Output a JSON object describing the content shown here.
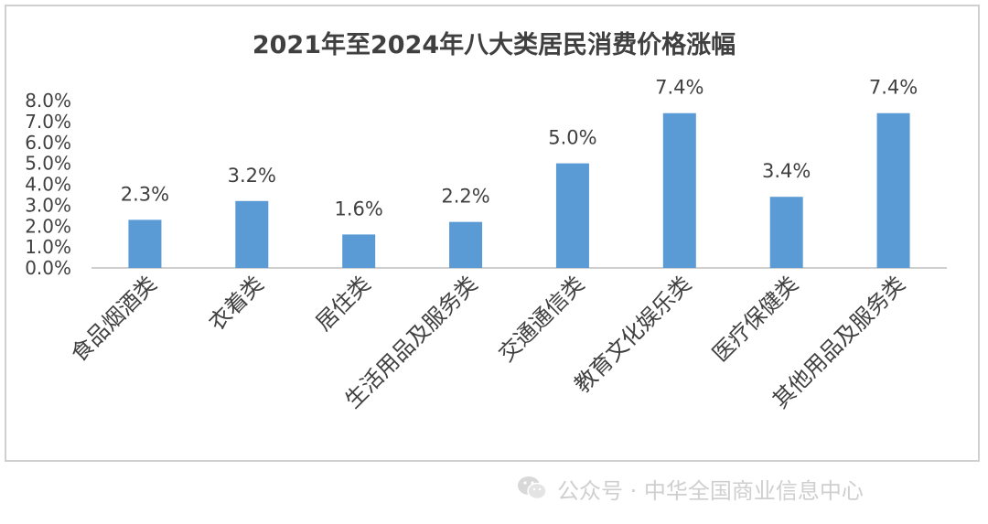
{
  "chart_data": {
    "type": "bar",
    "title": "2021年至2024年八大类居民消费价格涨幅",
    "categories": [
      "食品烟酒类",
      "衣着类",
      "居住类",
      "生活用品及服务类",
      "交通通信类",
      "教育文化娱乐类",
      "医疗保健类",
      "其他用品及服务类"
    ],
    "values": [
      2.3,
      3.2,
      1.6,
      2.2,
      5.0,
      7.4,
      3.4,
      7.4
    ],
    "data_labels": [
      "2.3%",
      "3.2%",
      "1.6%",
      "2.2%",
      "5.0%",
      "7.4%",
      "3.4%",
      "7.4%"
    ],
    "y_ticks": [
      "0.0%",
      "1.0%",
      "2.0%",
      "3.0%",
      "4.0%",
      "5.0%",
      "6.0%",
      "7.0%",
      "8.0%"
    ],
    "ylim": [
      0,
      8
    ],
    "xlabel": "",
    "ylabel": "",
    "grid": false,
    "legend": "none",
    "bar_color": "#5b9bd5"
  },
  "watermark": {
    "text": "公众号 · 中华全国商业信息中心",
    "icon": "wechat-icon"
  }
}
